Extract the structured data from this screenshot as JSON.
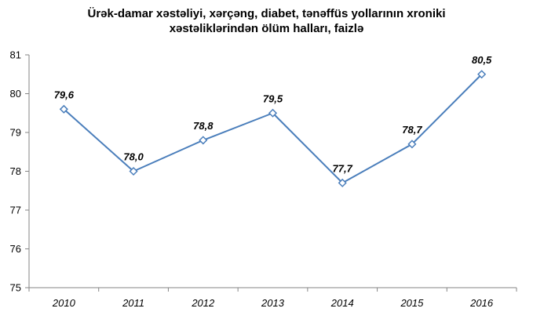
{
  "chart_data": {
    "type": "line",
    "title_lines": [
      "Ürək-damar xəstəliyi, xərçəng, diabet, tənəffüs yollarının xroniki",
      "xəstəliklərindən ölüm halları, faizlə"
    ],
    "xlabel": "",
    "ylabel": "",
    "categories": [
      "2010",
      "2011",
      "2012",
      "2013",
      "2014",
      "2015",
      "2016"
    ],
    "series": [
      {
        "values": [
          79.6,
          78.0,
          78.8,
          79.5,
          77.7,
          78.7,
          80.5
        ],
        "labels": [
          "79,6",
          "78,0",
          "78,8",
          "79,5",
          "77,7",
          "78,7",
          "80,5"
        ]
      }
    ],
    "ylim": [
      75,
      81
    ],
    "yticks": [
      75,
      76,
      77,
      78,
      79,
      80,
      81
    ],
    "grid": false,
    "legend": "none",
    "colors": {
      "line": "#4a7ebb",
      "marker_fill": "#ffffff",
      "axis": "#868686"
    }
  }
}
